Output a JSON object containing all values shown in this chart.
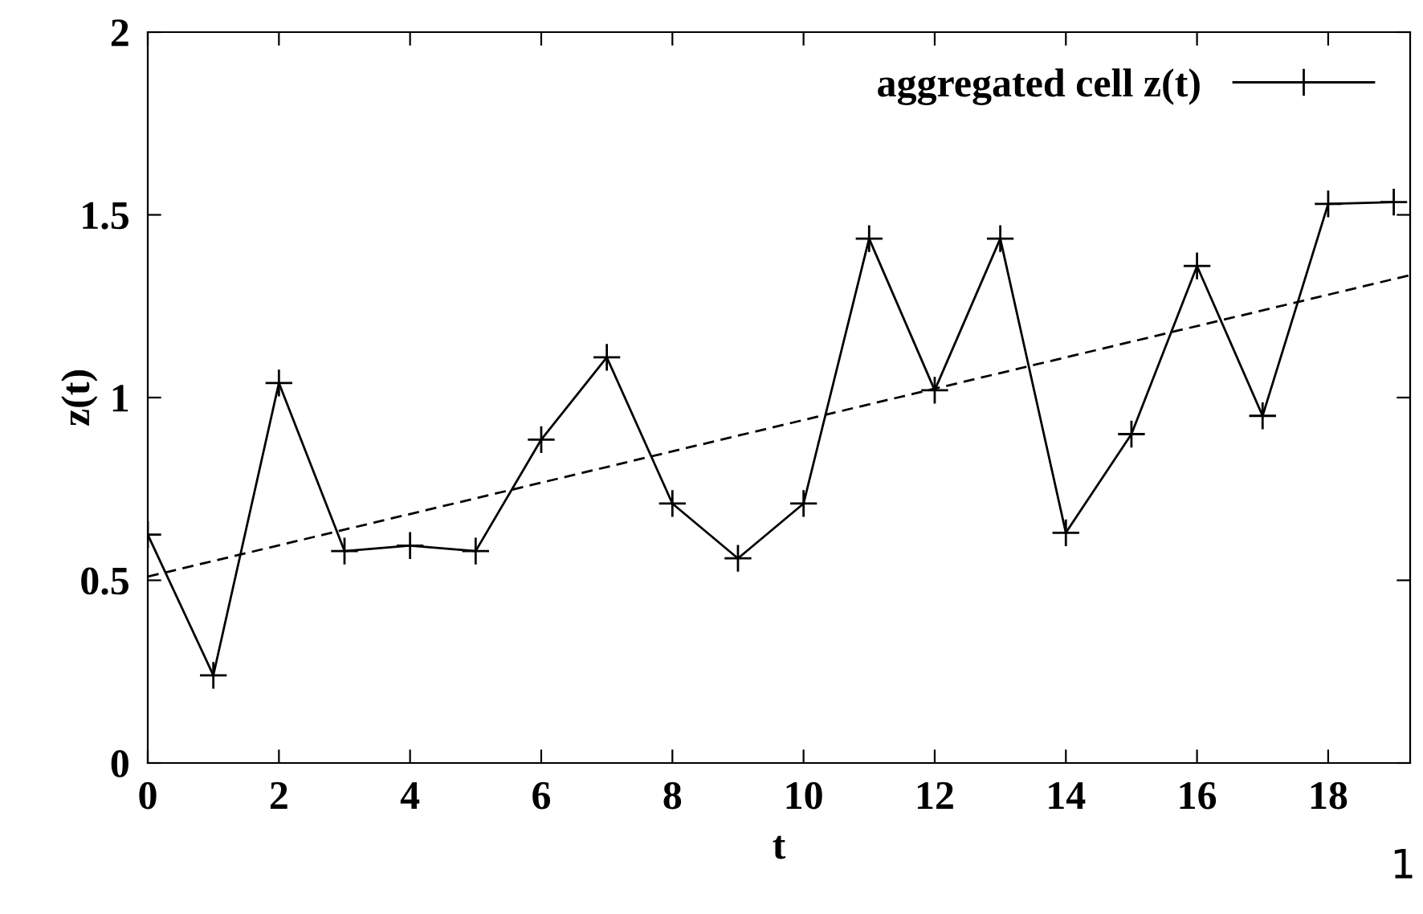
{
  "chart_data": {
    "type": "line",
    "xlabel": "t",
    "ylabel": "z(t)",
    "x": [
      0,
      1,
      2,
      3,
      4,
      5,
      6,
      7,
      8,
      9,
      10,
      11,
      12,
      13,
      14,
      15,
      16,
      17,
      18,
      19
    ],
    "series": [
      {
        "name": "aggregated cell z(t)",
        "color": "#000000",
        "marker": "cross",
        "line_style": "solid",
        "values": [
          0.625,
          0.24,
          1.04,
          0.58,
          0.595,
          0.58,
          0.885,
          1.11,
          0.71,
          0.56,
          0.71,
          1.435,
          1.02,
          1.435,
          0.63,
          0.9,
          1.36,
          0.95,
          1.53,
          1.535
        ]
      },
      {
        "type": "line",
        "color": "#000000",
        "marker": "none",
        "line_style": "dashed",
        "x": [
          0,
          19.25
        ],
        "values": [
          0.51,
          1.335
        ]
      }
    ],
    "xlim": [
      0,
      19.25
    ],
    "ylim": [
      0,
      2
    ],
    "xticks": [
      0,
      2,
      4,
      6,
      8,
      10,
      12,
      14,
      16,
      18
    ],
    "yticks": [
      0,
      0.5,
      1,
      1.5,
      2
    ],
    "grid": false,
    "legend": "top right",
    "annotations": [
      "1"
    ]
  }
}
